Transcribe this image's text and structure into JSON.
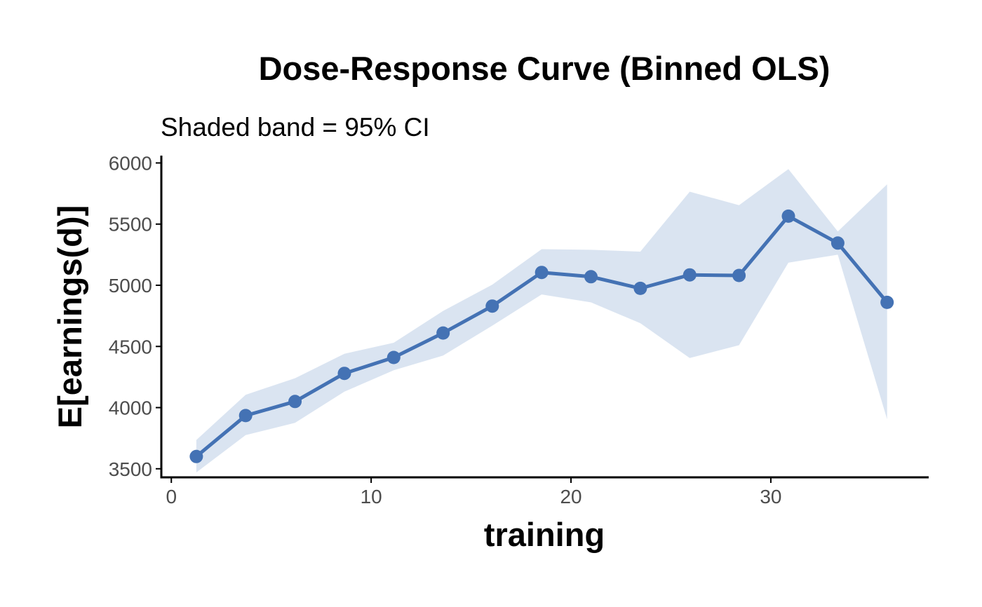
{
  "colors": {
    "line": "#4472b4",
    "band": "#dae4f1",
    "axis": "#000000",
    "tick_text": "#4d4d4d"
  },
  "chart_data": {
    "type": "line",
    "title": "Dose-Response Curve (Binned OLS)",
    "subtitle": "Shaded band = 95% CI",
    "xlabel": "training",
    "ylabel": "E[earnings(d)]",
    "xlim": [
      -0.5,
      37.9
    ],
    "ylim": [
      3430,
      6060
    ],
    "xticks": [
      0,
      10,
      20,
      30
    ],
    "xtick_labels": [
      "0",
      "10",
      "20",
      "30"
    ],
    "yticks": [
      3500,
      4000,
      4500,
      5000,
      5500,
      6000
    ],
    "ytick_labels": [
      "3500",
      "4000",
      "4500",
      "5000",
      "5500",
      "6000"
    ],
    "grid": false,
    "series": [
      {
        "name": "E[earnings(d)]",
        "x": [
          1.25,
          3.72,
          6.19,
          8.66,
          11.13,
          13.6,
          16.06,
          18.53,
          21.0,
          23.47,
          25.94,
          28.41,
          30.88,
          33.35,
          35.82
        ],
        "y": [
          3600,
          3935,
          4050,
          4280,
          4410,
          4610,
          4830,
          5105,
          5070,
          4975,
          5085,
          5080,
          5565,
          5345,
          4860
        ],
        "lower": [
          3470,
          3775,
          3875,
          4130,
          4305,
          4425,
          4670,
          4925,
          4860,
          4690,
          4405,
          4510,
          5185,
          5250,
          3905
        ],
        "upper": [
          3735,
          4105,
          4240,
          4440,
          4530,
          4790,
          5005,
          5295,
          5290,
          5275,
          5765,
          5655,
          5950,
          5440,
          5825
        ]
      }
    ]
  }
}
